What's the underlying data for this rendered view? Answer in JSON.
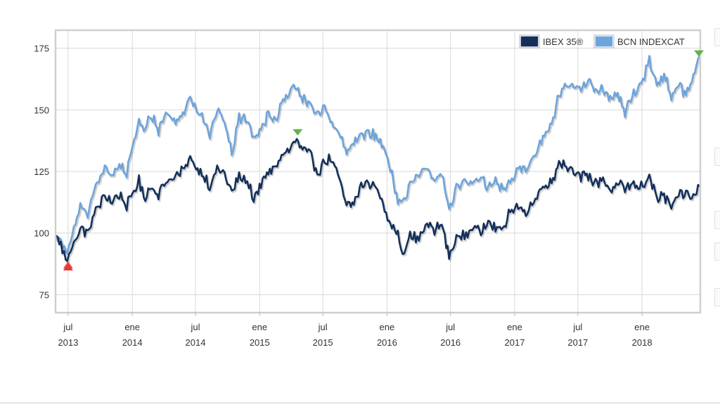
{
  "chart_data": {
    "type": "line",
    "title": "",
    "xlabel": "",
    "ylabel": "",
    "ylim": [
      68,
      182
    ],
    "xlim": [
      "2013-05-28",
      "2018-06-15"
    ],
    "y_ticks": [
      75,
      100,
      125,
      150,
      175
    ],
    "x_ticks": [
      {
        "date": "2013-07-01",
        "line1": "jul",
        "line2": "2013"
      },
      {
        "date": "2014-01-01",
        "line1": "ene",
        "line2": "2014"
      },
      {
        "date": "2014-07-01",
        "line1": "jul",
        "line2": "2014"
      },
      {
        "date": "2015-01-01",
        "line1": "ene",
        "line2": "2015"
      },
      {
        "date": "2015-07-01",
        "line1": "jul",
        "line2": "2015"
      },
      {
        "date": "2016-01-01",
        "line1": "ene",
        "line2": "2016"
      },
      {
        "date": "2016-07-01",
        "line1": "jul",
        "line2": "2016"
      },
      {
        "date": "2017-01-01",
        "line1": "ene",
        "line2": "2017"
      },
      {
        "date": "2017-07-01",
        "line1": "jul",
        "line2": "2017"
      },
      {
        "date": "2018-01-01",
        "line1": "ene",
        "line2": "2018"
      }
    ],
    "grid": true,
    "legend": "top-right",
    "series": [
      {
        "name": "IBEX 35®",
        "color": "#14305a",
        "points": [
          [
            "2013-05-28",
            99
          ],
          [
            "2013-06-10",
            95
          ],
          [
            "2013-06-24",
            89
          ],
          [
            "2013-07-08",
            93
          ],
          [
            "2013-07-22",
            97
          ],
          [
            "2013-08-05",
            102
          ],
          [
            "2013-08-26",
            100
          ],
          [
            "2013-09-09",
            106
          ],
          [
            "2013-09-23",
            110
          ],
          [
            "2013-10-14",
            115
          ],
          [
            "2013-11-04",
            113
          ],
          [
            "2013-11-25",
            116
          ],
          [
            "2013-12-16",
            111
          ],
          [
            "2014-01-06",
            117
          ],
          [
            "2014-01-20",
            121
          ],
          [
            "2014-02-03",
            114
          ],
          [
            "2014-02-24",
            119
          ],
          [
            "2014-03-17",
            116
          ],
          [
            "2014-04-07",
            121
          ],
          [
            "2014-05-05",
            123
          ],
          [
            "2014-05-26",
            125
          ],
          [
            "2014-06-16",
            130
          ],
          [
            "2014-07-07",
            126
          ],
          [
            "2014-07-28",
            123
          ],
          [
            "2014-08-11",
            119
          ],
          [
            "2014-09-01",
            126
          ],
          [
            "2014-09-22",
            124
          ],
          [
            "2014-10-13",
            116
          ],
          [
            "2014-11-03",
            123
          ],
          [
            "2014-12-01",
            120
          ],
          [
            "2014-12-15",
            114
          ],
          [
            "2015-01-05",
            120
          ],
          [
            "2015-01-26",
            124
          ],
          [
            "2015-02-16",
            127
          ],
          [
            "2015-03-09",
            132
          ],
          [
            "2015-03-30",
            134
          ],
          [
            "2015-04-13",
            138
          ],
          [
            "2015-05-04",
            134
          ],
          [
            "2015-05-25",
            132
          ],
          [
            "2015-06-15",
            124
          ],
          [
            "2015-07-06",
            129
          ],
          [
            "2015-07-27",
            130
          ],
          [
            "2015-08-17",
            122
          ],
          [
            "2015-09-07",
            111
          ],
          [
            "2015-09-28",
            112
          ],
          [
            "2015-10-19",
            119
          ],
          [
            "2015-11-09",
            120
          ],
          [
            "2015-11-30",
            119
          ],
          [
            "2015-12-21",
            112
          ],
          [
            "2016-01-11",
            103
          ],
          [
            "2016-02-01",
            100
          ],
          [
            "2016-02-15",
            91
          ],
          [
            "2016-03-07",
            100
          ],
          [
            "2016-03-28",
            97
          ],
          [
            "2016-04-25",
            104
          ],
          [
            "2016-05-16",
            101
          ],
          [
            "2016-06-06",
            104
          ],
          [
            "2016-06-27",
            90
          ],
          [
            "2016-07-18",
            98
          ],
          [
            "2016-08-15",
            99
          ],
          [
            "2016-09-05",
            103
          ],
          [
            "2016-09-26",
            100
          ],
          [
            "2016-10-17",
            106
          ],
          [
            "2016-11-07",
            102
          ],
          [
            "2016-11-28",
            101
          ],
          [
            "2016-12-19",
            109
          ],
          [
            "2017-01-16",
            110
          ],
          [
            "2017-02-06",
            109
          ],
          [
            "2017-03-06",
            115
          ],
          [
            "2017-03-27",
            120
          ],
          [
            "2017-04-17",
            120
          ],
          [
            "2017-05-08",
            129
          ],
          [
            "2017-05-29",
            127
          ],
          [
            "2017-06-19",
            126
          ],
          [
            "2017-07-10",
            123
          ],
          [
            "2017-07-31",
            123
          ],
          [
            "2017-08-21",
            120
          ],
          [
            "2017-09-11",
            122
          ],
          [
            "2017-10-02",
            117
          ],
          [
            "2017-10-23",
            120
          ],
          [
            "2017-11-13",
            118
          ],
          [
            "2017-12-04",
            120
          ],
          [
            "2017-12-25",
            118
          ],
          [
            "2018-01-22",
            123
          ],
          [
            "2018-02-12",
            114
          ],
          [
            "2018-03-05",
            115
          ],
          [
            "2018-03-26",
            111
          ],
          [
            "2018-04-16",
            115
          ],
          [
            "2018-05-07",
            116
          ],
          [
            "2018-05-28",
            114
          ],
          [
            "2018-06-15",
            119
          ]
        ]
      },
      {
        "name": "BCN INDEXCAT",
        "color": "#6da4dc",
        "points": [
          [
            "2013-05-28",
            99
          ],
          [
            "2013-06-10",
            96
          ],
          [
            "2013-06-24",
            91
          ],
          [
            "2013-07-08",
            97
          ],
          [
            "2013-07-22",
            103
          ],
          [
            "2013-08-05",
            112
          ],
          [
            "2013-08-26",
            107
          ],
          [
            "2013-09-09",
            115
          ],
          [
            "2013-09-23",
            121
          ],
          [
            "2013-10-14",
            127
          ],
          [
            "2013-11-04",
            123
          ],
          [
            "2013-11-25",
            128
          ],
          [
            "2013-12-16",
            124
          ],
          [
            "2014-01-06",
            138
          ],
          [
            "2014-01-20",
            145
          ],
          [
            "2014-02-03",
            141
          ],
          [
            "2014-02-24",
            148
          ],
          [
            "2014-03-17",
            142
          ],
          [
            "2014-04-07",
            149
          ],
          [
            "2014-05-05",
            145
          ],
          [
            "2014-05-26",
            148
          ],
          [
            "2014-06-16",
            155
          ],
          [
            "2014-07-07",
            150
          ],
          [
            "2014-07-28",
            146
          ],
          [
            "2014-08-11",
            140
          ],
          [
            "2014-09-01",
            150
          ],
          [
            "2014-09-22",
            145
          ],
          [
            "2014-10-13",
            132
          ],
          [
            "2014-11-03",
            147
          ],
          [
            "2014-12-01",
            145
          ],
          [
            "2014-12-15",
            139
          ],
          [
            "2015-01-05",
            143
          ],
          [
            "2015-01-26",
            148
          ],
          [
            "2015-02-16",
            146
          ],
          [
            "2015-03-09",
            153
          ],
          [
            "2015-03-30",
            157
          ],
          [
            "2015-04-13",
            160
          ],
          [
            "2015-05-04",
            154
          ],
          [
            "2015-05-25",
            153
          ],
          [
            "2015-06-15",
            147
          ],
          [
            "2015-07-06",
            151
          ],
          [
            "2015-07-27",
            145
          ],
          [
            "2015-08-17",
            140
          ],
          [
            "2015-09-07",
            133
          ],
          [
            "2015-09-28",
            136
          ],
          [
            "2015-10-19",
            140
          ],
          [
            "2015-11-09",
            141
          ],
          [
            "2015-11-30",
            139
          ],
          [
            "2015-12-21",
            135
          ],
          [
            "2016-01-11",
            127
          ],
          [
            "2016-02-01",
            113
          ],
          [
            "2016-02-15",
            112
          ],
          [
            "2016-03-07",
            119
          ],
          [
            "2016-03-28",
            123
          ],
          [
            "2016-04-25",
            126
          ],
          [
            "2016-05-16",
            122
          ],
          [
            "2016-06-06",
            125
          ],
          [
            "2016-06-27",
            108
          ],
          [
            "2016-07-18",
            118
          ],
          [
            "2016-08-15",
            122
          ],
          [
            "2016-09-05",
            120
          ],
          [
            "2016-09-26",
            123
          ],
          [
            "2016-10-17",
            118
          ],
          [
            "2016-11-07",
            121
          ],
          [
            "2016-11-28",
            117
          ],
          [
            "2016-12-19",
            120
          ],
          [
            "2017-01-16",
            127
          ],
          [
            "2017-02-06",
            126
          ],
          [
            "2017-03-06",
            134
          ],
          [
            "2017-03-27",
            140
          ],
          [
            "2017-04-17",
            145
          ],
          [
            "2017-05-08",
            156
          ],
          [
            "2017-05-29",
            160
          ],
          [
            "2017-06-19",
            160
          ],
          [
            "2017-07-10",
            159
          ],
          [
            "2017-07-31",
            161
          ],
          [
            "2017-08-21",
            157
          ],
          [
            "2017-09-11",
            158
          ],
          [
            "2017-10-02",
            154
          ],
          [
            "2017-10-23",
            156
          ],
          [
            "2017-11-13",
            149
          ],
          [
            "2017-12-04",
            156
          ],
          [
            "2017-12-25",
            159
          ],
          [
            "2018-01-22",
            170
          ],
          [
            "2018-02-12",
            160
          ],
          [
            "2018-03-05",
            164
          ],
          [
            "2018-03-26",
            156
          ],
          [
            "2018-04-16",
            160
          ],
          [
            "2018-05-07",
            156
          ],
          [
            "2018-05-28",
            163
          ],
          [
            "2018-06-15",
            172
          ]
        ]
      }
    ],
    "markers": [
      {
        "type": "min",
        "date": "2013-07-01",
        "value": 86,
        "color": "#e53935"
      },
      {
        "type": "max",
        "date": "2015-04-20",
        "value": 141,
        "color": "#5fb54a"
      },
      {
        "type": "max",
        "date": "2018-06-13",
        "value": 173,
        "color": "#5fb54a"
      }
    ]
  }
}
